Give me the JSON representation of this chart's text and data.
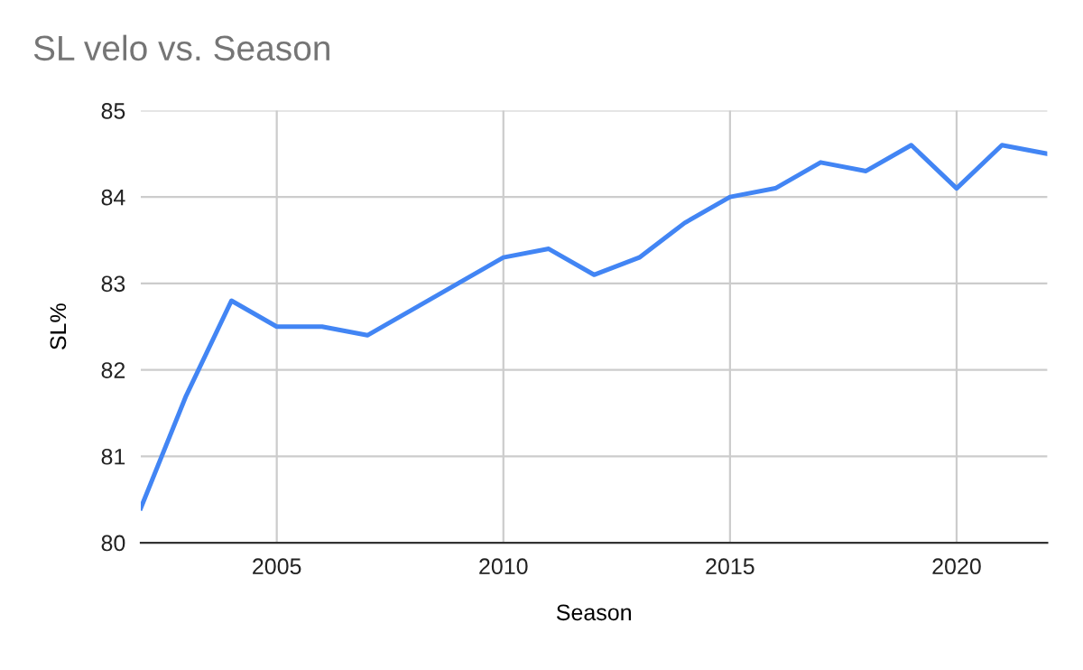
{
  "chart_data": {
    "type": "line",
    "title": "SL velo vs. Season",
    "xlabel": "Season",
    "ylabel": "SL%",
    "x": [
      2002,
      2003,
      2004,
      2005,
      2006,
      2007,
      2008,
      2009,
      2010,
      2011,
      2012,
      2013,
      2014,
      2015,
      2016,
      2017,
      2018,
      2019,
      2020,
      2021,
      2022
    ],
    "series": [
      {
        "color": "#4285f4",
        "values": [
          80.4,
          81.7,
          82.8,
          82.5,
          82.5,
          82.4,
          82.7,
          83.0,
          83.3,
          83.4,
          83.1,
          83.3,
          83.7,
          84.0,
          84.1,
          84.4,
          84.3,
          84.6,
          84.1,
          84.6,
          84.5
        ]
      }
    ],
    "xlim": [
      2002,
      2022
    ],
    "xticks": [
      2005,
      2010,
      2015,
      2020
    ],
    "ylim": [
      80,
      85
    ],
    "yticks": [
      80,
      81,
      82,
      83,
      84,
      85
    ],
    "grid": true,
    "marker": "none",
    "line_style": "solid"
  }
}
